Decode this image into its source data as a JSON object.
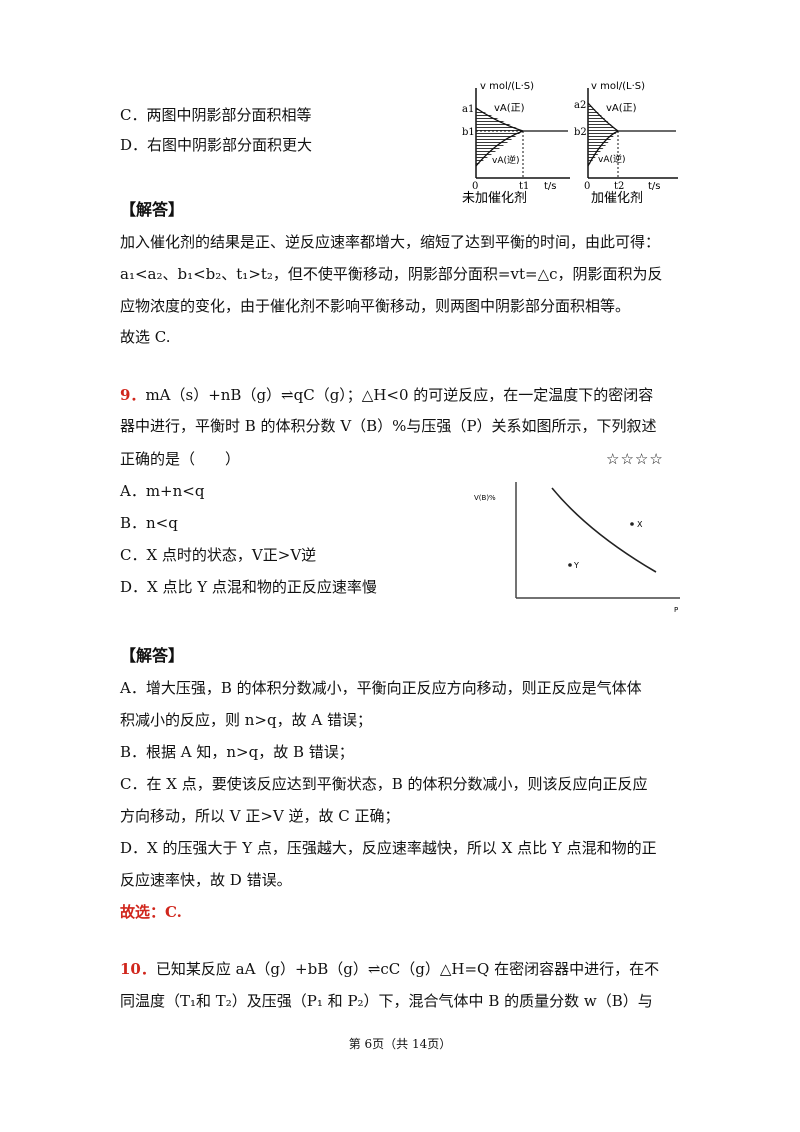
{
  "q8": {
    "optC": "C．两图中阴影部分面积相等",
    "optD": "D．右图中阴影部分面积更大",
    "figure": {
      "ylabel": "v mol/(L·S)",
      "left": {
        "caption": "未加催化剂",
        "a": "a1",
        "b": "b1",
        "t": "t1",
        "fwd": "vA(正)",
        "rev": "vA(逆)",
        "xlab": "t/s",
        "origin": "0"
      },
      "right": {
        "caption": "加催化剂",
        "a": "a2",
        "b": "b2",
        "t": "t2",
        "fwd": "vA(正)",
        "rev": "vA(逆)",
        "xlab": "t/s",
        "origin": "0"
      }
    },
    "answer_title": "【解答】",
    "ans1": "加入催化剂的结果是正、逆反应速率都增大，缩短了达到平衡的时间，由此可得：",
    "ans2": "a₁<a₂、b₁<b₂、t₁>t₂，但不使平衡移动，阴影部分面积=vt=△c，阴影面积为反",
    "ans3": "应物浓度的变化，由于催化剂不影响平衡移动，则两图中阴影部分面积相等。",
    "ans4": "故选 C."
  },
  "q9": {
    "num": "9．",
    "stem1": "mA（s）+nB（g）⇌qC（g）；△H<0 的可逆反应，在一定温度下的密闭容",
    "stem2": "器中进行，平衡时 B 的体积分数 V（B）%与压强（P）关系如图所示，下列叙述",
    "stem3": "正确的是（　　）",
    "stars": "☆☆☆☆",
    "optA": "A．m+n<q",
    "optB": "B．n<q",
    "optC": "C．X 点时的状态，V正>V逆",
    "optD": "D．X 点比 Y 点混和物的正反应速率慢",
    "chart": {
      "ylabel": "V(B)%",
      "xlabel": "P",
      "point_x": "X",
      "point_y": "Y"
    },
    "answer_title": "【解答】",
    "ansA1": "A．增大压强，B 的体积分数减小，平衡向正反应方向移动，则正反应是气体体",
    "ansA2": "积减小的反应，则 n>q，故 A 错误；",
    "ansB": "B．根据 A 知，n>q，故 B 错误；",
    "ansC1": "C．在 X 点，要使该反应达到平衡状态，B 的体积分数减小，则该反应向正反应",
    "ansC2": "方向移动，所以 V 正>V 逆，故 C 正确；",
    "ansD1": "D．X 的压强大于 Y 点，压强越大，反应速率越快，所以 X 点比 Y 点混和物的正",
    "ansD2": "反应速率快，故 D 错误。",
    "choice": "故选：C."
  },
  "q10": {
    "num": "10．",
    "line1": "已知某反应 aA（g）+bB（g）⇌cC（g）△H=Q 在密闭容器中进行，在不",
    "line2": "同温度（T₁和 T₂）及压强（P₁ 和 P₂）下，混合气体中 B 的质量分数 w（B）与"
  },
  "footer": "第 6页（共 14页）"
}
